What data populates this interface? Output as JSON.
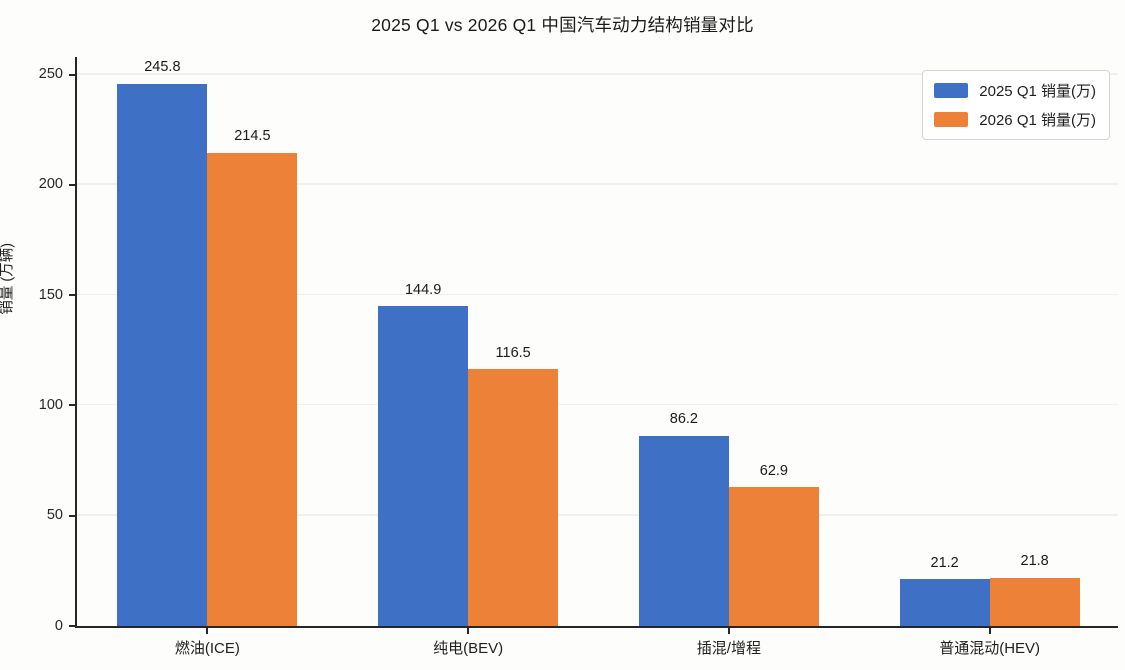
{
  "chart_data": {
    "type": "bar",
    "title": "2025 Q1 vs 2026 Q1 中国汽车动力结构销量对比",
    "ylabel": "销量 (万辆)",
    "xlabel": "",
    "categories": [
      "燃油(ICE)",
      "纯电(BEV)",
      "插混/增程",
      "普通混动(HEV)"
    ],
    "series": [
      {
        "name": "2025 Q1 销量(万)",
        "color": "#3E70C6",
        "values": [
          245.8,
          144.9,
          86.2,
          21.2
        ]
      },
      {
        "name": "2026 Q1 销量(万)",
        "color": "#ED8137",
        "values": [
          214.5,
          116.5,
          62.9,
          21.8
        ]
      }
    ],
    "ylim": [
      0,
      258
    ],
    "yticks": [
      0,
      50,
      100,
      150,
      200,
      250
    ],
    "grid": true,
    "legend_position": "upper right"
  },
  "colors": {
    "series_2025": "#3E70C6",
    "series_2026": "#ED8137",
    "axis": "#262626",
    "gridline": "#f0f0ee",
    "background": "#fdfdfb"
  }
}
